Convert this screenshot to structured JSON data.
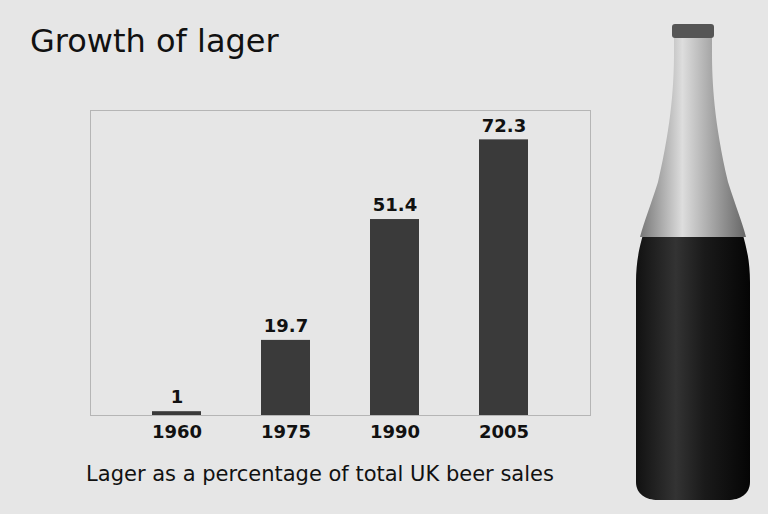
{
  "chart_data": {
    "type": "bar",
    "title": "Growth of lager",
    "xlabel": "Lager as a percentage of total UK beer sales",
    "categories": [
      "1960",
      "1975",
      "1990",
      "2005"
    ],
    "values": [
      1,
      19.7,
      51.4,
      72.3
    ],
    "color": "#3a3a3a",
    "ylim": [
      0,
      80
    ],
    "yticks": [],
    "grid": false,
    "data_labels": true,
    "tick_labels": "x"
  }
}
